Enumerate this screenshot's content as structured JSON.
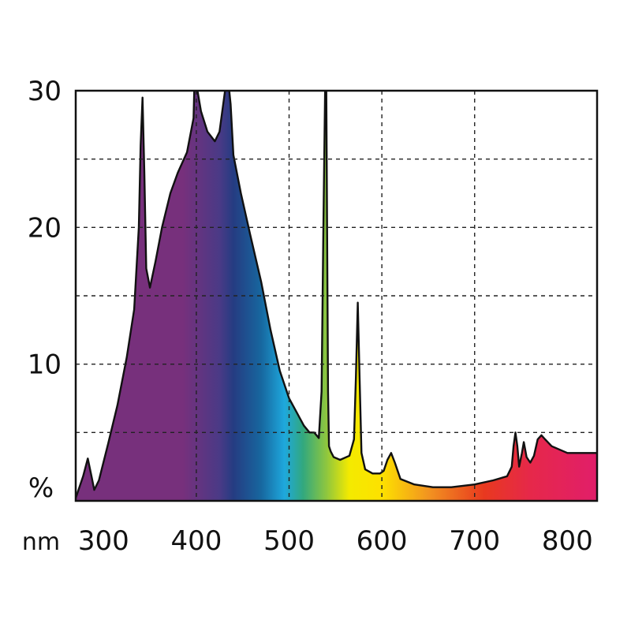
{
  "chart_data": {
    "type": "area",
    "title": "",
    "xlabel": "nm",
    "ylabel": "%",
    "xlim": [
      270,
      832
    ],
    "ylim": [
      0,
      30
    ],
    "x_ticks": [
      300,
      400,
      500,
      600,
      700,
      800
    ],
    "x_tick_labels": [
      "300",
      "400",
      "500",
      "600",
      "700",
      "800"
    ],
    "x_gridlines": [
      400,
      500,
      600,
      700
    ],
    "y_ticks": [
      10,
      20,
      30
    ],
    "y_tick_labels": [
      "10",
      "20",
      "30"
    ],
    "y_gridlines": [
      5,
      10,
      15,
      20,
      25
    ],
    "grid": true,
    "grid_style": "dashed",
    "legend": "none",
    "fill": "visible-spectrum gradient",
    "clipped_above_30": true,
    "series": [
      {
        "x": [
          270,
          278,
          283,
          287,
          290,
          295,
          305,
          315,
          325,
          333,
          338,
          340,
          342,
          344,
          346,
          350,
          356,
          363,
          372,
          380,
          390,
          397,
          398,
          399,
          400,
          405,
          412,
          420,
          425,
          428,
          432,
          434,
          437,
          440,
          448,
          458,
          470,
          480,
          490,
          500,
          508,
          516,
          522,
          527,
          532,
          535,
          537,
          539,
          540,
          541,
          542,
          543,
          545,
          548,
          555,
          565,
          570,
          572,
          574,
          576,
          578,
          582,
          590,
          598,
          602,
          606,
          610,
          614,
          620,
          635,
          655,
          675,
          700,
          720,
          735,
          740,
          742,
          744,
          746,
          748,
          751,
          753,
          756,
          760,
          764,
          768,
          772,
          776,
          783,
          800,
          815,
          832
        ],
        "y": [
          0.2,
          1.8,
          3.1,
          1.8,
          0.8,
          1.5,
          4.2,
          7.0,
          10.5,
          14.0,
          20.0,
          26.0,
          29.5,
          24.0,
          17.0,
          15.6,
          17.5,
          20.0,
          22.5,
          24.0,
          25.5,
          28.0,
          30.5,
          31.0,
          30.5,
          28.5,
          27.0,
          26.3,
          27.0,
          28.5,
          30.5,
          31.0,
          29.0,
          25.3,
          22.5,
          19.5,
          16.0,
          12.5,
          9.5,
          7.5,
          6.5,
          5.5,
          5.0,
          5.0,
          4.6,
          8.0,
          20.0,
          31.0,
          31.0,
          20.0,
          8.0,
          4.0,
          3.6,
          3.2,
          3.0,
          3.3,
          4.5,
          9.0,
          14.5,
          9.0,
          3.5,
          2.3,
          2.0,
          2.0,
          2.2,
          3.0,
          3.5,
          2.8,
          1.6,
          1.2,
          1.0,
          1.0,
          1.2,
          1.5,
          1.8,
          2.5,
          4.0,
          5.0,
          4.0,
          2.5,
          3.5,
          4.3,
          3.2,
          2.8,
          3.3,
          4.5,
          4.8,
          4.5,
          4.0,
          3.5,
          3.5,
          3.5
        ]
      }
    ]
  },
  "colors": {
    "gradient_stops": [
      {
        "nm": 270,
        "color": "#77307c"
      },
      {
        "nm": 385,
        "color": "#77307c"
      },
      {
        "nm": 425,
        "color": "#4a3a86"
      },
      {
        "nm": 440,
        "color": "#253c82"
      },
      {
        "nm": 470,
        "color": "#17679f"
      },
      {
        "nm": 495,
        "color": "#1ea8dd"
      },
      {
        "nm": 515,
        "color": "#32a87e"
      },
      {
        "nm": 540,
        "color": "#8dc63f"
      },
      {
        "nm": 565,
        "color": "#f4ea00"
      },
      {
        "nm": 600,
        "color": "#fde100"
      },
      {
        "nm": 650,
        "color": "#f29420"
      },
      {
        "nm": 710,
        "color": "#e8391f"
      },
      {
        "nm": 760,
        "color": "#e6284a"
      },
      {
        "nm": 832,
        "color": "#e11e6a"
      }
    ],
    "outline": "#111111",
    "grid": "#222222",
    "frame": "#111111"
  }
}
